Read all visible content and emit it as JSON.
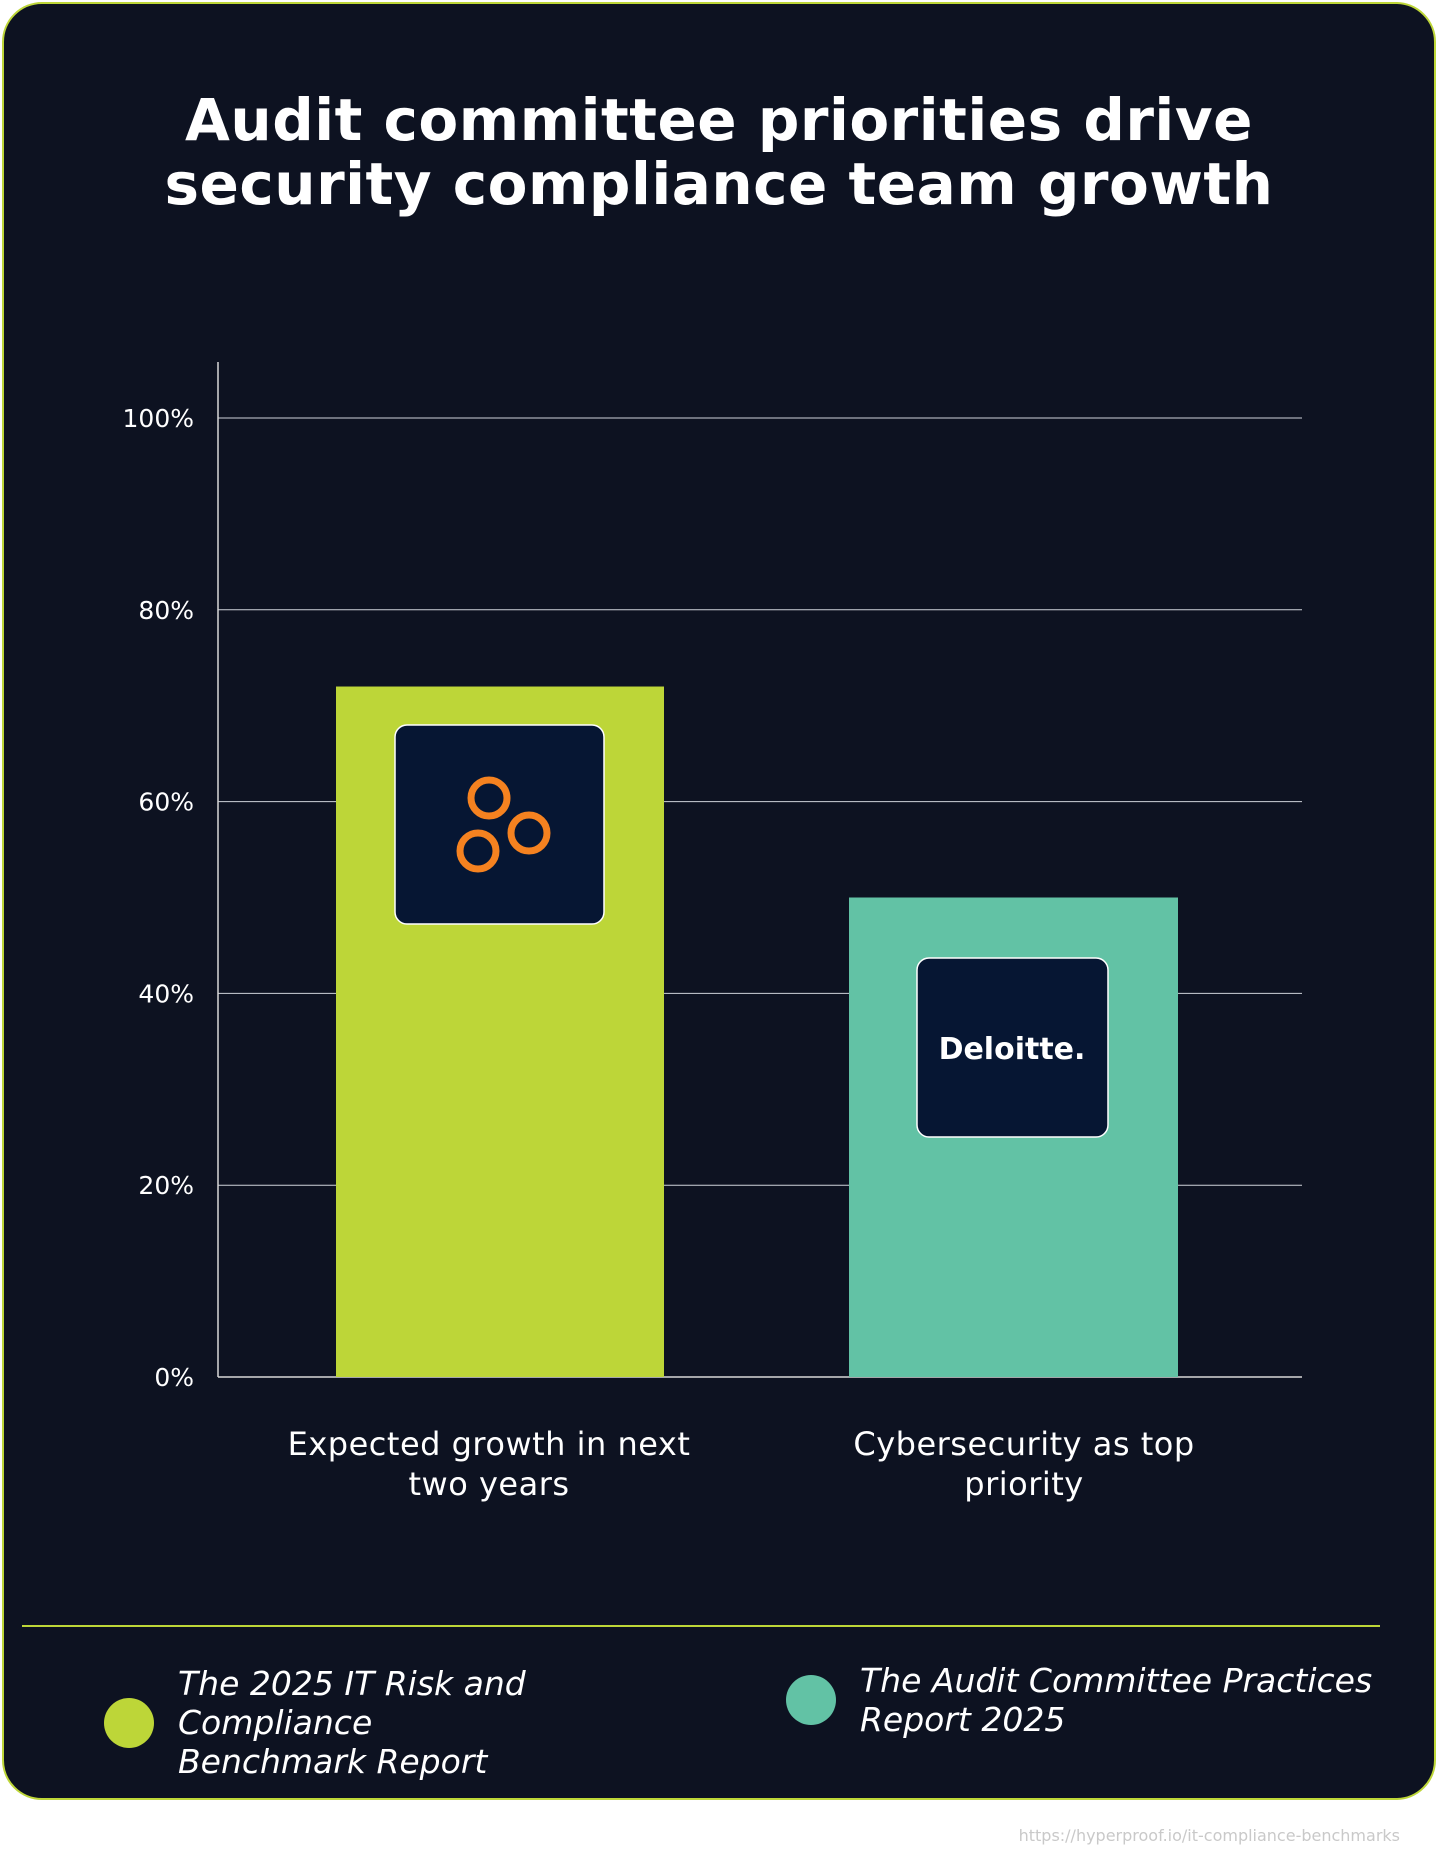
{
  "colors": {
    "background": "#0d1221",
    "border": "#bdd638",
    "series_a": "#bdd638",
    "series_b": "#62c2a5",
    "logo_bg": "#061633",
    "logo_ring": "#f58220"
  },
  "chart_data": {
    "type": "bar",
    "title": "Audit committee priorities drive security compliance team growth",
    "title_lines": [
      "Audit committee priorities drive",
      "security compliance team growth"
    ],
    "categories": [
      "Expected growth in next two years",
      "Cybersecurity as top priority"
    ],
    "category_lines": [
      [
        "Expected growth in next",
        "two years"
      ],
      [
        "Cybersecurity as top",
        "priority"
      ]
    ],
    "values": [
      72,
      50
    ],
    "bar_colors": [
      "#bdd638",
      "#62c2a5"
    ],
    "ylim": [
      0,
      100
    ],
    "yticks": [
      0,
      20,
      40,
      60,
      80,
      100
    ],
    "ytick_labels": [
      "0%",
      "20%",
      "40%",
      "60%",
      "80%",
      "100%"
    ],
    "xlabel": "",
    "ylabel": "",
    "grid": true,
    "legend_position": "bottom",
    "legend": [
      {
        "label": "The 2025 IT Risk and Compliance Benchmark Report",
        "lines": [
          "The 2025 IT Risk and Compliance",
          "Benchmark Report"
        ],
        "color": "#bdd638"
      },
      {
        "label": "The Audit Committee Practices Report 2025",
        "lines": [
          "The Audit Committee Practices",
          "Report 2025"
        ],
        "color": "#62c2a5"
      }
    ],
    "bar_logos": [
      {
        "name": "three-rings-logo",
        "text": ""
      },
      {
        "name": "deloitte-logo",
        "text": "Deloitte."
      }
    ]
  },
  "footer": {
    "url": "https://hyperproof.io/it-compliance-benchmarks"
  }
}
